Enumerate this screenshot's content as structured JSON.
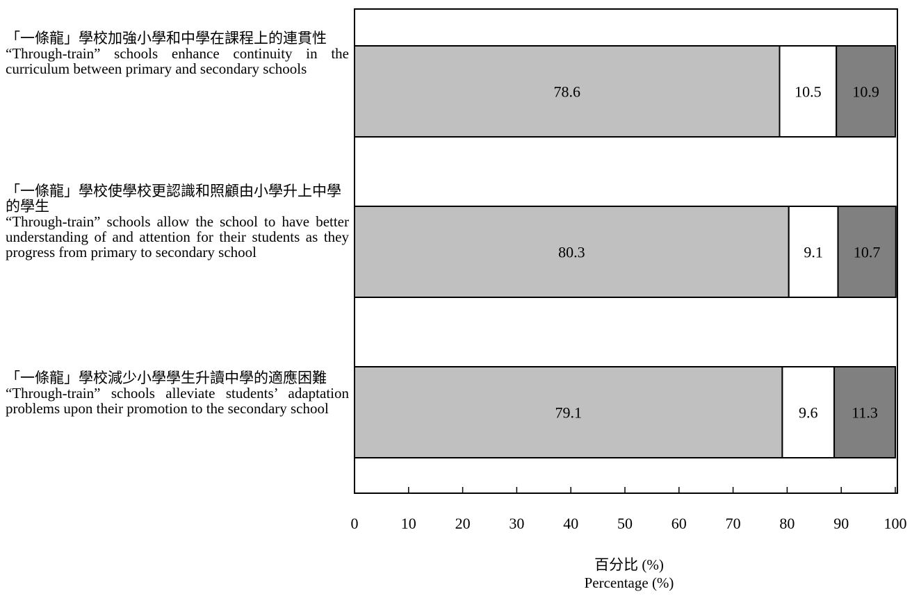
{
  "chart_data": {
    "type": "bar",
    "orientation": "horizontal",
    "stacked": true,
    "categories": [
      {
        "zh": "「一條龍」學校加強小學和中學在課程上的連貫性",
        "en": "“Through-train” schools enhance continuity in the curriculum between primary and secondary schools"
      },
      {
        "zh": "「一條龍」學校使學校更認識和照顧由小學升上中學的學生",
        "en": "“Through-train” schools allow the school to have better understanding of and attention for their students as they progress from primary to secondary school"
      },
      {
        "zh": "「一條龍」學校減少小學學生升讀中學的適應困難",
        "en": "“Through-train” schools alleviate students’ adaptation problems upon their promotion to the secondary school"
      }
    ],
    "series": [
      {
        "values": [
          78.6,
          80.3,
          79.1
        ],
        "color": "#c0c0c0"
      },
      {
        "values": [
          10.5,
          9.1,
          9.6
        ],
        "color": "#ffffff"
      },
      {
        "values": [
          10.9,
          10.7,
          11.3
        ],
        "color": "#808080"
      }
    ],
    "xlim": [
      0,
      100
    ],
    "xticks": [
      0,
      10,
      20,
      30,
      40,
      50,
      60,
      70,
      80,
      90,
      100
    ],
    "xlabel_zh": "百分比 (%)",
    "xlabel_en": "Percentage (%)",
    "data_labels": true,
    "grid": false
  }
}
